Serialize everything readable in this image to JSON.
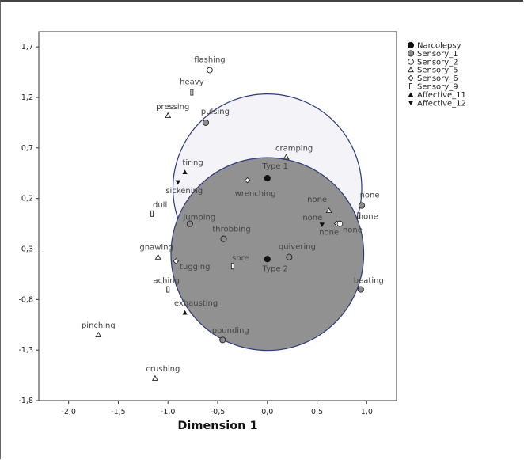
{
  "chart_data": {
    "type": "scatter",
    "xlabel": "Dimension 1",
    "ylabel": "",
    "xlim": [
      -2.3,
      1.3
    ],
    "ylim": [
      -1.8,
      1.85
    ],
    "x_ticks": [
      -2.0,
      -1.5,
      -1.0,
      -0.5,
      0.0,
      0.5,
      1.0
    ],
    "x_tick_labels": [
      "-2,0",
      "-1,5",
      "-1,0",
      "-0,5",
      "0,0",
      "0,5",
      "1,0"
    ],
    "y_ticks": [
      1.7,
      1.2,
      0.7,
      0.2,
      -0.3,
      -0.8,
      -1.3,
      -1.8
    ],
    "y_tick_labels": [
      "1,7",
      "1,2",
      "0,7",
      "0,2",
      "-0,3",
      "-0,8",
      "-1,3",
      "-1,8"
    ],
    "legend_position": "right",
    "legend": [
      {
        "name": "Narcolepsy",
        "marker": "filled-circle"
      },
      {
        "name": "Sensory_1",
        "marker": "grey-circle"
      },
      {
        "name": "Sensory_2",
        "marker": "open-circle"
      },
      {
        "name": "Sensory_5",
        "marker": "open-triangle"
      },
      {
        "name": "Sensory_6",
        "marker": "open-diamond"
      },
      {
        "name": "Sensory_9",
        "marker": "open-bar"
      },
      {
        "name": "Affective_11",
        "marker": "filled-triangle"
      },
      {
        "name": "Affective_12",
        "marker": "filled-down-triangle"
      }
    ],
    "regions": [
      {
        "center": [
          0.0,
          0.3
        ],
        "radius": 0.95,
        "fill": "#f3f3f8",
        "stroke": "#2b3a7a"
      },
      {
        "center": [
          0.0,
          -0.35
        ],
        "radius": 0.97,
        "fill": "#919191",
        "stroke": "#2b3a7a"
      }
    ],
    "points": [
      {
        "label": "Type 1",
        "x": 0.0,
        "y": 0.4,
        "marker": "filled-circle"
      },
      {
        "label": "Type 2",
        "x": 0.0,
        "y": -0.4,
        "marker": "filled-circle"
      },
      {
        "label": "flashing",
        "x": -0.58,
        "y": 1.47,
        "marker": "open-circle"
      },
      {
        "label": "heavy",
        "x": -0.76,
        "y": 1.25,
        "marker": "open-bar"
      },
      {
        "label": "pressing",
        "x": -1.0,
        "y": 1.02,
        "marker": "open-triangle"
      },
      {
        "label": "pulsing",
        "x": -0.62,
        "y": 0.95,
        "marker": "grey-circle"
      },
      {
        "label": "cramping",
        "x": 0.19,
        "y": 0.61,
        "marker": "open-triangle"
      },
      {
        "label": "tiring",
        "x": -0.83,
        "y": 0.46,
        "marker": "filled-triangle"
      },
      {
        "label": "sickening",
        "x": -0.9,
        "y": 0.36,
        "marker": "filled-down-triangle"
      },
      {
        "label": "wrenching",
        "x": -0.2,
        "y": 0.38,
        "marker": "open-diamond"
      },
      {
        "label": "dull",
        "x": -1.16,
        "y": 0.05,
        "marker": "open-bar"
      },
      {
        "label": "jumping",
        "x": -0.78,
        "y": -0.05,
        "marker": "grey-circle"
      },
      {
        "label": "throbbing",
        "x": -0.44,
        "y": -0.2,
        "marker": "grey-circle"
      },
      {
        "label": "none",
        "x": 0.62,
        "y": 0.08,
        "marker": "open-triangle"
      },
      {
        "label": "none",
        "x": 0.55,
        "y": -0.06,
        "marker": "filled-down-triangle"
      },
      {
        "label": "none",
        "x": 0.7,
        "y": -0.05,
        "marker": "open-diamond"
      },
      {
        "label": "none",
        "x": 0.73,
        "y": -0.05,
        "marker": "open-circle"
      },
      {
        "label": "none",
        "x": 0.95,
        "y": 0.13,
        "marker": "grey-circle"
      },
      {
        "label": "none",
        "x": 0.92,
        "y": 0.03,
        "marker": "open-bar"
      },
      {
        "label": "quivering",
        "x": 0.22,
        "y": -0.38,
        "marker": "grey-circle"
      },
      {
        "label": "sore",
        "x": -0.35,
        "y": -0.47,
        "marker": "open-bar"
      },
      {
        "label": "gnawing",
        "x": -1.1,
        "y": -0.38,
        "marker": "open-triangle"
      },
      {
        "label": "tugging",
        "x": -0.92,
        "y": -0.42,
        "marker": "open-diamond"
      },
      {
        "label": "aching",
        "x": -1.0,
        "y": -0.7,
        "marker": "open-bar"
      },
      {
        "label": "beating",
        "x": 0.94,
        "y": -0.7,
        "marker": "grey-circle"
      },
      {
        "label": "exhausting",
        "x": -0.83,
        "y": -0.93,
        "marker": "filled-triangle"
      },
      {
        "label": "pinching",
        "x": -1.7,
        "y": -1.15,
        "marker": "open-triangle"
      },
      {
        "label": "pounding",
        "x": -0.45,
        "y": -1.2,
        "marker": "grey-circle"
      },
      {
        "label": "crushing",
        "x": -1.13,
        "y": -1.58,
        "marker": "open-triangle"
      }
    ]
  }
}
